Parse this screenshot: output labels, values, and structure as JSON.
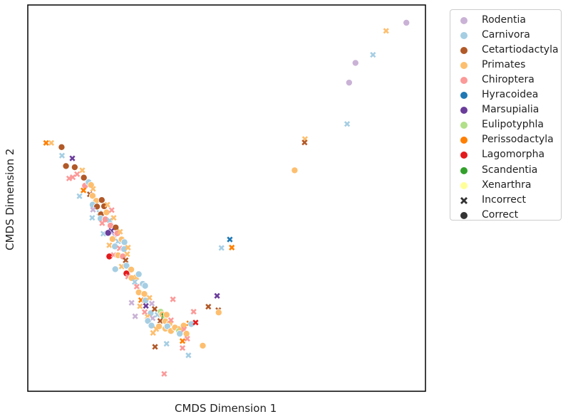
{
  "chart_data": {
    "type": "scatter",
    "xlabel": "CMDS Dimension 1",
    "ylabel": "CMDS Dimension 2",
    "ticks": false,
    "grid": false,
    "legend_position": "outside-right-top",
    "xlim": [
      0,
      100
    ],
    "ylim": [
      0,
      100
    ],
    "colors": {
      "Rodentia": "#cab2d6",
      "Carnivora": "#a6cee3",
      "Cetartiodactyla": "#b15928",
      "Primates": "#fdbf6f",
      "Chiroptera": "#fb9a99",
      "Hyracoidea": "#1f78b4",
      "Marsupialia": "#6a3d9a",
      "Eulipotyphla": "#b2df8a",
      "Perissodactyla": "#ff7f00",
      "Lagomorpha": "#e31a1c",
      "Scandentia": "#33a02c",
      "Xenarthra": "#ffff99"
    },
    "legend": {
      "orders": [
        "Rodentia",
        "Carnivora",
        "Cetartiodactyla",
        "Primates",
        "Chiroptera",
        "Hyracoidea",
        "Marsupialia",
        "Eulipotyphla",
        "Perissodactyla",
        "Lagomorpha",
        "Scandentia",
        "Xenarthra"
      ],
      "markers": [
        "Incorrect",
        "Correct"
      ]
    },
    "points": [
      {
        "x": 95.2,
        "y": 95.4,
        "order": "Rodentia",
        "status": "Correct"
      },
      {
        "x": 90.1,
        "y": 93.3,
        "order": "Primates",
        "status": "Incorrect"
      },
      {
        "x": 86.8,
        "y": 87.1,
        "order": "Carnivora",
        "status": "Incorrect"
      },
      {
        "x": 82.4,
        "y": 85.0,
        "order": "Rodentia",
        "status": "Correct"
      },
      {
        "x": 80.8,
        "y": 79.9,
        "order": "Rodentia",
        "status": "Correct"
      },
      {
        "x": 80.3,
        "y": 69.2,
        "order": "Carnivora",
        "status": "Incorrect"
      },
      {
        "x": 69.7,
        "y": 65.3,
        "order": "Primates",
        "status": "Incorrect"
      },
      {
        "x": 69.6,
        "y": 64.4,
        "order": "Cetartiodactyla",
        "status": "Incorrect"
      },
      {
        "x": 67.1,
        "y": 57.2,
        "order": "Primates",
        "status": "Correct"
      },
      {
        "x": 4.6,
        "y": 64.3,
        "order": "Perissodactyla",
        "status": "Incorrect"
      },
      {
        "x": 5.9,
        "y": 64.3,
        "order": "Primates",
        "status": "Incorrect"
      },
      {
        "x": 8.5,
        "y": 63.2,
        "order": "Cetartiodactyla",
        "status": "Correct"
      },
      {
        "x": 8.6,
        "y": 61.0,
        "order": "Carnivora",
        "status": "Incorrect"
      },
      {
        "x": 9.6,
        "y": 58.3,
        "order": "Cetartiodactyla",
        "status": "Correct"
      },
      {
        "x": 11.2,
        "y": 60.3,
        "order": "Marsupialia",
        "status": "Incorrect"
      },
      {
        "x": 11.8,
        "y": 58.0,
        "order": "Cetartiodactyla",
        "status": "Correct"
      },
      {
        "x": 10.4,
        "y": 55.1,
        "order": "Chiroptera",
        "status": "Incorrect"
      },
      {
        "x": 11.3,
        "y": 55.4,
        "order": "Chiroptera",
        "status": "Incorrect"
      },
      {
        "x": 12.4,
        "y": 56.2,
        "order": "Chiroptera",
        "status": "Incorrect"
      },
      {
        "x": 13.7,
        "y": 57.2,
        "order": "Primates",
        "status": "Incorrect"
      },
      {
        "x": 14.1,
        "y": 55.3,
        "order": "Cetartiodactyla",
        "status": "Correct"
      },
      {
        "x": 14.4,
        "y": 53.2,
        "order": "Chiroptera",
        "status": "Correct"
      },
      {
        "x": 14.0,
        "y": 52.0,
        "order": "Perissodactyla",
        "status": "Incorrect"
      },
      {
        "x": 15.3,
        "y": 54.1,
        "order": "Carnivora",
        "status": "Correct"
      },
      {
        "x": 15.9,
        "y": 53.4,
        "order": "Primates",
        "status": "Correct"
      },
      {
        "x": 16.4,
        "y": 52.4,
        "order": "Primates",
        "status": "Incorrect"
      },
      {
        "x": 15.6,
        "y": 51.0,
        "order": "Cetartiodactyla",
        "status": "Incorrect"
      },
      {
        "x": 16.3,
        "y": 50.6,
        "order": "Primates",
        "status": "Correct"
      },
      {
        "x": 13.0,
        "y": 50.5,
        "order": "Carnivora",
        "status": "Incorrect"
      },
      {
        "x": 17.2,
        "y": 49.3,
        "order": "Primates",
        "status": "Correct"
      },
      {
        "x": 16.3,
        "y": 48.3,
        "order": "Carnivora",
        "status": "Correct"
      },
      {
        "x": 18.6,
        "y": 49.5,
        "order": "Cetartiodactyla",
        "status": "Correct"
      },
      {
        "x": 17.4,
        "y": 47.8,
        "order": "Cetartiodactyla",
        "status": "Correct"
      },
      {
        "x": 16.4,
        "y": 47.0,
        "order": "Rodentia",
        "status": "Incorrect"
      },
      {
        "x": 19.2,
        "y": 47.9,
        "order": "Cetartiodactyla",
        "status": "Correct"
      },
      {
        "x": 20.0,
        "y": 48.3,
        "order": "Primates",
        "status": "Incorrect"
      },
      {
        "x": 18.0,
        "y": 46.2,
        "order": "Carnivora",
        "status": "Incorrect"
      },
      {
        "x": 18.4,
        "y": 45.8,
        "order": "Cetartiodactyla",
        "status": "Correct"
      },
      {
        "x": 19.8,
        "y": 46.3,
        "order": "Primates",
        "status": "Correct"
      },
      {
        "x": 21.1,
        "y": 46.9,
        "order": "Chiroptera",
        "status": "Incorrect"
      },
      {
        "x": 16.2,
        "y": 44.9,
        "order": "Carnivora",
        "status": "Incorrect"
      },
      {
        "x": 18.3,
        "y": 44.7,
        "order": "Carnivora",
        "status": "Correct"
      },
      {
        "x": 19.5,
        "y": 44.5,
        "order": "Chiroptera",
        "status": "Correct"
      },
      {
        "x": 20.6,
        "y": 44.2,
        "order": "Carnivora",
        "status": "Incorrect"
      },
      {
        "x": 21.6,
        "y": 44.9,
        "order": "Primates",
        "status": "Incorrect"
      },
      {
        "x": 18.7,
        "y": 43.5,
        "order": "Chiroptera",
        "status": "Incorrect"
      },
      {
        "x": 20.8,
        "y": 42.9,
        "order": "Chiroptera",
        "status": "Correct"
      },
      {
        "x": 22.1,
        "y": 42.4,
        "order": "Cetartiodactyla",
        "status": "Correct"
      },
      {
        "x": 21.0,
        "y": 41.5,
        "order": "Marsupialia",
        "status": "Incorrect"
      },
      {
        "x": 19.0,
        "y": 40.8,
        "order": "Carnivora",
        "status": "Incorrect"
      },
      {
        "x": 20.2,
        "y": 41.0,
        "order": "Marsupialia",
        "status": "Correct"
      },
      {
        "x": 21.7,
        "y": 40.5,
        "order": "Rodentia",
        "status": "Incorrect"
      },
      {
        "x": 22.5,
        "y": 40.9,
        "order": "Chiroptera",
        "status": "Correct"
      },
      {
        "x": 23.2,
        "y": 41.3,
        "order": "Primates",
        "status": "Incorrect"
      },
      {
        "x": 21.3,
        "y": 39.4,
        "order": "Primates",
        "status": "Correct"
      },
      {
        "x": 22.7,
        "y": 38.8,
        "order": "Carnivora",
        "status": "Incorrect"
      },
      {
        "x": 23.6,
        "y": 39.3,
        "order": "Primates",
        "status": "Correct"
      },
      {
        "x": 24.3,
        "y": 38.6,
        "order": "Carnivora",
        "status": "Correct"
      },
      {
        "x": 20.5,
        "y": 37.8,
        "order": "Primates",
        "status": "Incorrect"
      },
      {
        "x": 21.9,
        "y": 37.5,
        "order": "Carnivora",
        "status": "Correct"
      },
      {
        "x": 23.1,
        "y": 37.0,
        "order": "Chiroptera",
        "status": "Incorrect"
      },
      {
        "x": 24.2,
        "y": 36.8,
        "order": "Carnivora",
        "status": "Correct"
      },
      {
        "x": 25.2,
        "y": 37.2,
        "order": "Primates",
        "status": "Incorrect"
      },
      {
        "x": 20.5,
        "y": 34.9,
        "order": "Lagomorpha",
        "status": "Correct"
      },
      {
        "x": 21.6,
        "y": 35.3,
        "order": "Chiroptera",
        "status": "Incorrect"
      },
      {
        "x": 22.7,
        "y": 35.2,
        "order": "Primates",
        "status": "Correct"
      },
      {
        "x": 23.9,
        "y": 34.9,
        "order": "Chiroptera",
        "status": "Correct"
      },
      {
        "x": 25.0,
        "y": 35.5,
        "order": "Primates",
        "status": "Incorrect"
      },
      {
        "x": 24.6,
        "y": 33.9,
        "order": "Cetartiodactyla",
        "status": "Incorrect"
      },
      {
        "x": 22.0,
        "y": 31.6,
        "order": "Carnivora",
        "status": "Correct"
      },
      {
        "x": 23.6,
        "y": 32.3,
        "order": "Primates",
        "status": "Incorrect"
      },
      {
        "x": 24.8,
        "y": 32.5,
        "order": "Carnivora",
        "status": "Correct"
      },
      {
        "x": 26.0,
        "y": 31.5,
        "order": "Primates",
        "status": "Correct"
      },
      {
        "x": 24.8,
        "y": 30.5,
        "order": "Lagomorpha",
        "status": "Correct"
      },
      {
        "x": 25.2,
        "y": 29.7,
        "order": "Chiroptera",
        "status": "Incorrect"
      },
      {
        "x": 26.1,
        "y": 29.3,
        "order": "Primates",
        "status": "Correct"
      },
      {
        "x": 27.3,
        "y": 29.5,
        "order": "Primates",
        "status": "Incorrect"
      },
      {
        "x": 27.9,
        "y": 30.3,
        "order": "Carnivora",
        "status": "Correct"
      },
      {
        "x": 26.9,
        "y": 28.3,
        "order": "Carnivora",
        "status": "Incorrect"
      },
      {
        "x": 28.9,
        "y": 27.8,
        "order": "Carnivora",
        "status": "Correct"
      },
      {
        "x": 27.4,
        "y": 27.1,
        "order": "Chiroptera",
        "status": "Incorrect"
      },
      {
        "x": 29.5,
        "y": 27.3,
        "order": "Carnivora",
        "status": "Correct"
      },
      {
        "x": 27.9,
        "y": 25.6,
        "order": "Primates",
        "status": "Correct"
      },
      {
        "x": 29.3,
        "y": 25.2,
        "order": "Primates",
        "status": "Correct"
      },
      {
        "x": 28.5,
        "y": 23.6,
        "order": "Perissodactyla",
        "status": "Incorrect"
      },
      {
        "x": 29.6,
        "y": 23.5,
        "order": "Carnivora",
        "status": "Correct"
      },
      {
        "x": 30.6,
        "y": 24.2,
        "order": "Primates",
        "status": "Incorrect"
      },
      {
        "x": 26.1,
        "y": 22.9,
        "order": "Rodentia",
        "status": "Incorrect"
      },
      {
        "x": 28.2,
        "y": 22.0,
        "order": "Primates",
        "status": "Incorrect"
      },
      {
        "x": 29.7,
        "y": 22.1,
        "order": "Marsupialia",
        "status": "Incorrect"
      },
      {
        "x": 31.2,
        "y": 22.7,
        "order": "Rodentia",
        "status": "Incorrect"
      },
      {
        "x": 29.4,
        "y": 20.5,
        "order": "Chiroptera",
        "status": "Incorrect"
      },
      {
        "x": 30.9,
        "y": 20.2,
        "order": "Carnivora",
        "status": "Correct"
      },
      {
        "x": 31.9,
        "y": 21.3,
        "order": "Cetartiodactyla",
        "status": "Incorrect"
      },
      {
        "x": 30.1,
        "y": 19.3,
        "order": "Primates",
        "status": "Incorrect"
      },
      {
        "x": 31.4,
        "y": 18.9,
        "order": "Rodentia",
        "status": "Incorrect"
      },
      {
        "x": 32.6,
        "y": 19.8,
        "order": "Carnivora",
        "status": "Incorrect"
      },
      {
        "x": 33.4,
        "y": 20.6,
        "order": "Eulipotyphla",
        "status": "Correct"
      },
      {
        "x": 33.8,
        "y": 19.9,
        "order": "Primates",
        "status": "Correct"
      },
      {
        "x": 27.0,
        "y": 19.4,
        "order": "Rodentia",
        "status": "Incorrect"
      },
      {
        "x": 30.2,
        "y": 18.2,
        "order": "Carnivora",
        "status": "Correct"
      },
      {
        "x": 31.1,
        "y": 17.0,
        "order": "Carnivora",
        "status": "Correct"
      },
      {
        "x": 33.3,
        "y": 18.2,
        "order": "Cetartiodactyla",
        "status": "Incorrect"
      },
      {
        "x": 34.3,
        "y": 19.5,
        "order": "Scandentia",
        "status": "Incorrect"
      },
      {
        "x": 34.5,
        "y": 18.6,
        "order": "Eulipotyphla",
        "status": "Incorrect"
      },
      {
        "x": 34.6,
        "y": 18.1,
        "order": "Primates",
        "status": "Correct"
      },
      {
        "x": 35.6,
        "y": 17.5,
        "order": "Primates",
        "status": "Correct"
      },
      {
        "x": 33.0,
        "y": 16.8,
        "order": "Primates",
        "status": "Correct"
      },
      {
        "x": 34.6,
        "y": 16.2,
        "order": "Primates",
        "status": "Correct"
      },
      {
        "x": 35.1,
        "y": 16.8,
        "order": "Carnivora",
        "status": "Correct"
      },
      {
        "x": 36.0,
        "y": 18.4,
        "order": "Chiroptera",
        "status": "Incorrect"
      },
      {
        "x": 36.0,
        "y": 15.6,
        "order": "Primates",
        "status": "Correct"
      },
      {
        "x": 37.0,
        "y": 16.5,
        "order": "Primates",
        "status": "Correct"
      },
      {
        "x": 38.0,
        "y": 15.6,
        "order": "Eulipotyphla",
        "status": "Correct"
      },
      {
        "x": 38.4,
        "y": 16.2,
        "order": "Primates",
        "status": "Incorrect"
      },
      {
        "x": 38.2,
        "y": 14.9,
        "order": "Carnivora",
        "status": "Correct"
      },
      {
        "x": 39.2,
        "y": 17.0,
        "order": "Primates",
        "status": "Correct"
      },
      {
        "x": 39.3,
        "y": 16.0,
        "order": "Chiroptera",
        "status": "Incorrect"
      },
      {
        "x": 39.9,
        "y": 14.9,
        "order": "Primates",
        "status": "Correct"
      },
      {
        "x": 38.9,
        "y": 13.0,
        "order": "Perissodactyla",
        "status": "Incorrect"
      },
      {
        "x": 40.6,
        "y": 17.6,
        "order": "Perissodactyla",
        "status": "Incorrect"
      },
      {
        "x": 41.1,
        "y": 17.4,
        "order": "Carnivora",
        "status": "Correct"
      },
      {
        "x": 42.2,
        "y": 17.8,
        "order": "Lagomorpha",
        "status": "Incorrect"
      },
      {
        "x": 41.7,
        "y": 20.6,
        "order": "Chiroptera",
        "status": "Incorrect"
      },
      {
        "x": 36.5,
        "y": 23.8,
        "order": "Chiroptera",
        "status": "Incorrect"
      },
      {
        "x": 34.9,
        "y": 19.8,
        "order": "Primates",
        "status": "Correct"
      },
      {
        "x": 32.3,
        "y": 16.1,
        "order": "Primates",
        "status": "Incorrect"
      },
      {
        "x": 31.5,
        "y": 15.1,
        "order": "Primates",
        "status": "Incorrect"
      },
      {
        "x": 32.0,
        "y": 11.5,
        "order": "Cetartiodactyla",
        "status": "Incorrect"
      },
      {
        "x": 34.9,
        "y": 12.3,
        "order": "Carnivora",
        "status": "Incorrect"
      },
      {
        "x": 38.9,
        "y": 11.2,
        "order": "Chiroptera",
        "status": "Incorrect"
      },
      {
        "x": 40.1,
        "y": 13.6,
        "order": "Chiroptera",
        "status": "Incorrect"
      },
      {
        "x": 44.0,
        "y": 11.8,
        "order": "Primates",
        "status": "Correct"
      },
      {
        "x": 40.4,
        "y": 9.3,
        "order": "Carnivora",
        "status": "Incorrect"
      },
      {
        "x": 34.3,
        "y": 4.5,
        "order": "Chiroptera",
        "status": "Incorrect"
      },
      {
        "x": 45.4,
        "y": 21.9,
        "order": "Cetartiodactyla",
        "status": "Incorrect"
      },
      {
        "x": 47.6,
        "y": 24.7,
        "order": "Marsupialia",
        "status": "Incorrect"
      },
      {
        "x": 47.9,
        "y": 21.0,
        "order": "Cetartiodactyla",
        "status": "Incorrect"
      },
      {
        "x": 48.0,
        "y": 20.4,
        "order": "Primates",
        "status": "Correct"
      },
      {
        "x": 48.7,
        "y": 37.1,
        "order": "Carnivora",
        "status": "Incorrect"
      },
      {
        "x": 50.8,
        "y": 39.3,
        "order": "Hyracoidea",
        "status": "Incorrect"
      },
      {
        "x": 51.3,
        "y": 37.2,
        "order": "Perissodactyla",
        "status": "Incorrect"
      }
    ]
  }
}
